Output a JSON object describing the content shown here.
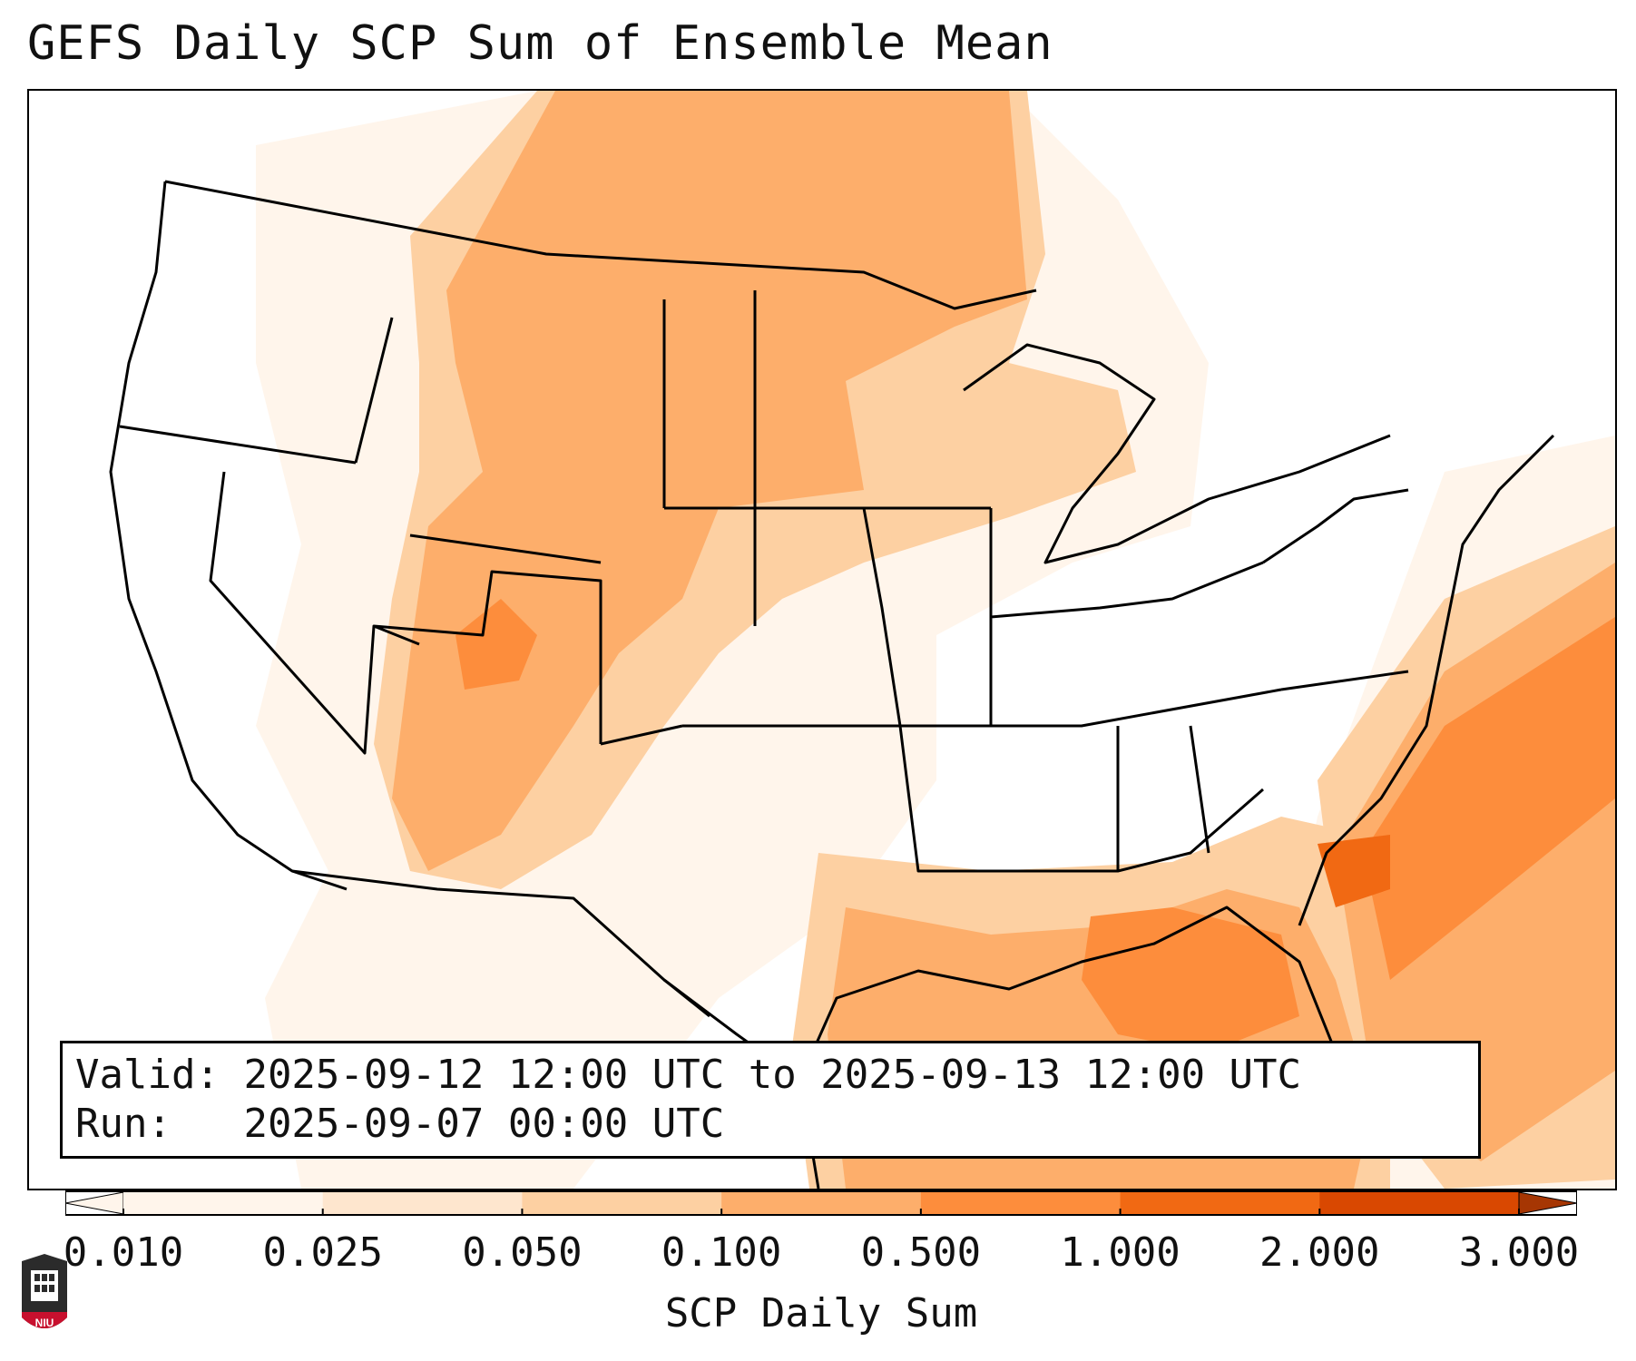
{
  "title": "GEFS Daily SCP Sum of Ensemble Mean",
  "info": {
    "valid_label": "Valid:",
    "valid_value": "2025-09-12 12:00 UTC to 2025-09-13 12:00 UTC",
    "run_label": "Run:",
    "run_value": "2025-09-07 00:00 UTC"
  },
  "colorbar": {
    "label": "SCP Daily Sum",
    "ticks": [
      "0.010",
      "0.025",
      "0.050",
      "0.100",
      "0.500",
      "1.000",
      "2.000",
      "3.000"
    ],
    "colors": [
      "#fff5eb",
      "#fee6ce",
      "#fdd0a2",
      "#fdae6b",
      "#fd8d3c",
      "#f16913",
      "#d94801",
      "#a63603"
    ],
    "extend": "both"
  },
  "logo": {
    "text": "NIU",
    "colors": {
      "shield": "#c8102e",
      "tower": "#2b2b2b"
    }
  },
  "map": {
    "projection": "Lambert conformal, CONUS",
    "field": "SCP daily sum",
    "coastline_color": "#000000"
  }
}
